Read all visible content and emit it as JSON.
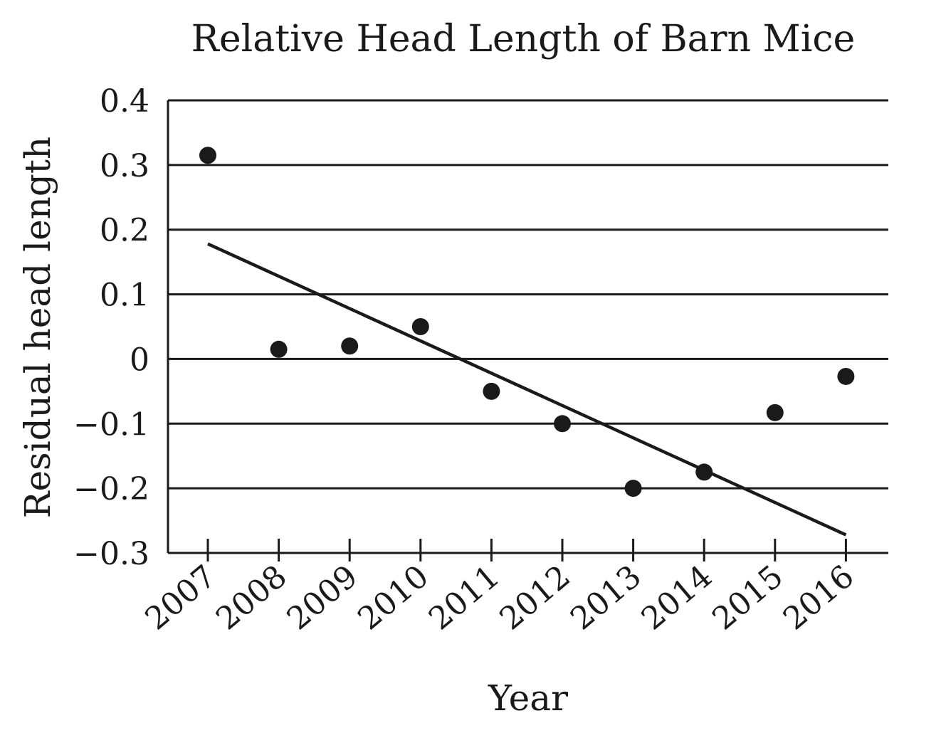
{
  "chart_data": {
    "type": "scatter",
    "title": "Relative Head Length of Barn Mice",
    "xlabel": "Year",
    "ylabel": "Residual head length",
    "categories": [
      "2007",
      "2008",
      "2009",
      "2010",
      "2011",
      "2012",
      "2013",
      "2014",
      "2015",
      "2016"
    ],
    "y_ticks": [
      "0.4",
      "0.3",
      "0.2",
      "0.1",
      "0",
      "−0.1",
      "−0.2",
      "−0.3"
    ],
    "y_tick_values": [
      0.4,
      0.3,
      0.2,
      0.1,
      0,
      -0.1,
      -0.2,
      -0.3
    ],
    "ylim": [
      -0.3,
      0.4
    ],
    "grid": true,
    "series": [
      {
        "values": [
          0.315,
          0.015,
          0.02,
          0.05,
          -0.05,
          -0.1,
          -0.2,
          -0.175,
          -0.083,
          -0.027
        ]
      }
    ],
    "trend_line": {
      "start": {
        "x": "2007",
        "y": 0.178
      },
      "end": {
        "x": "2016",
        "y": -0.272
      }
    },
    "colors": {
      "ink": "#1a1a1a",
      "background": "#ffffff"
    }
  }
}
